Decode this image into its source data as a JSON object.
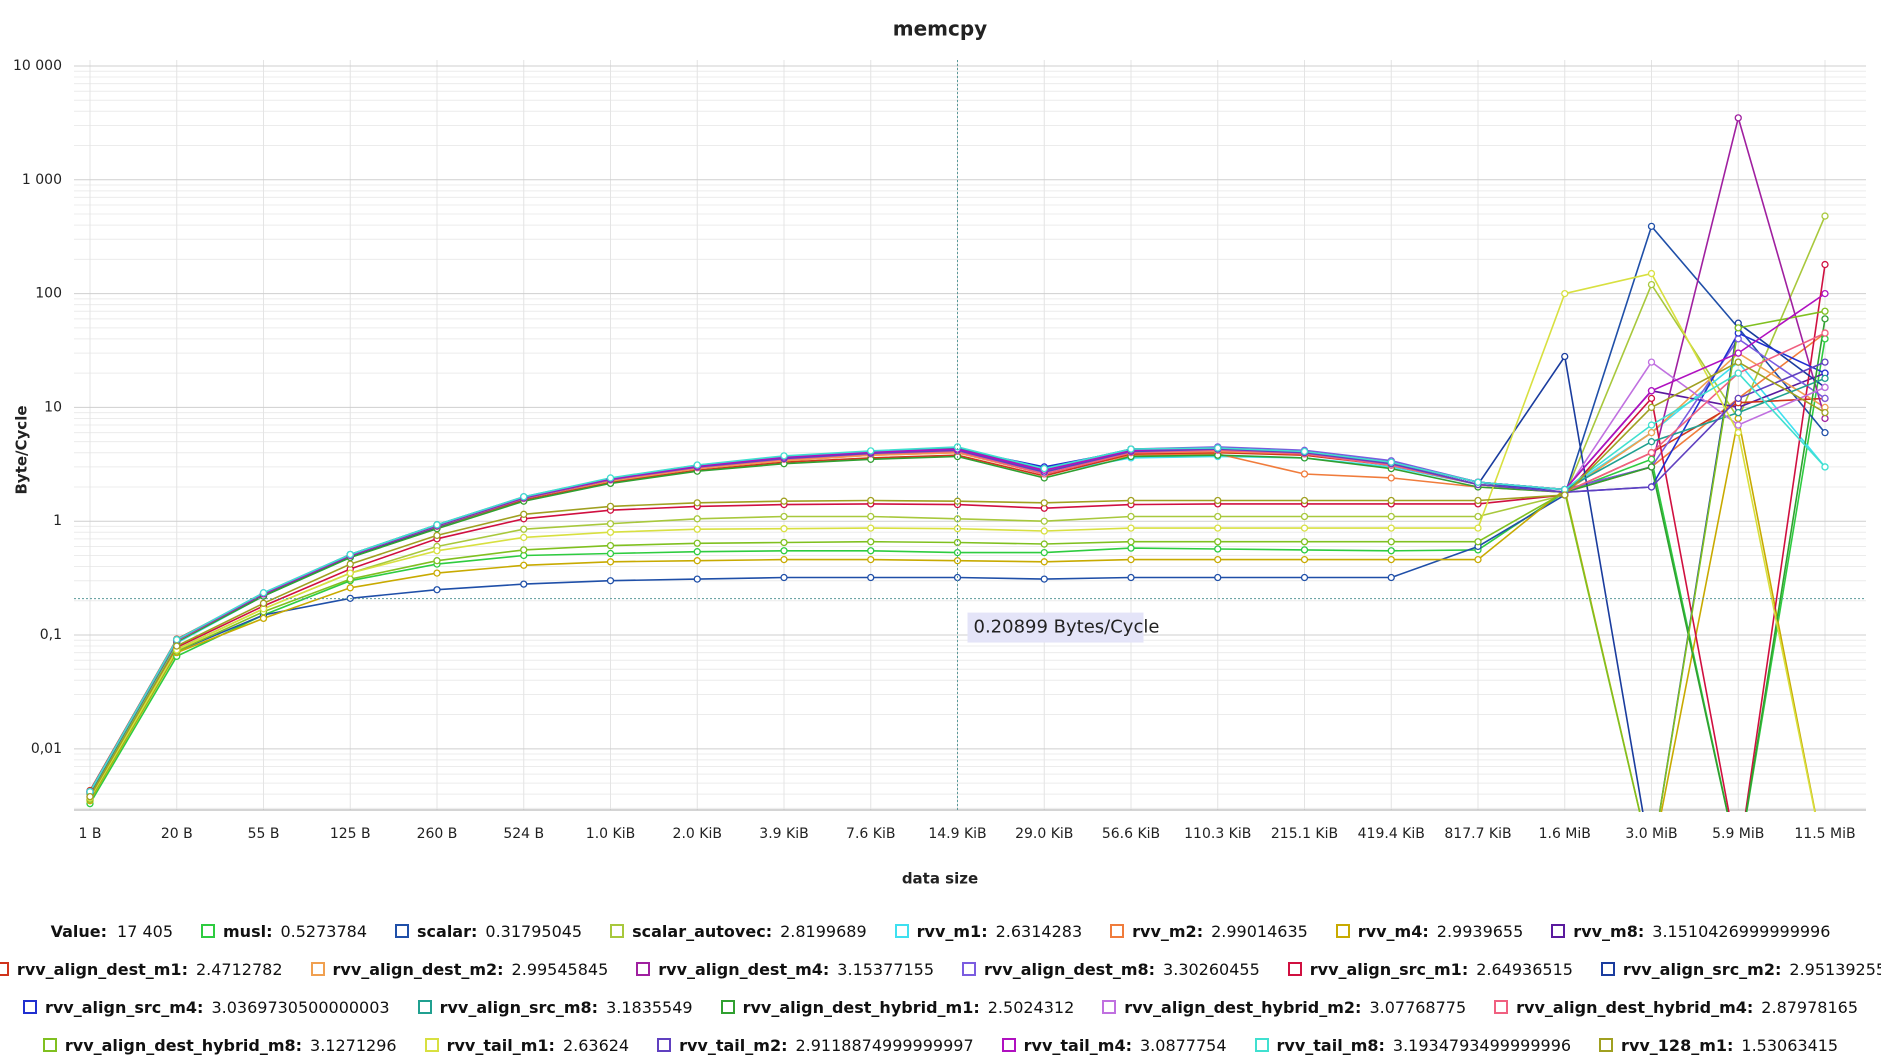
{
  "chart_data": {
    "type": "line",
    "title": "memcpy",
    "x_label": "data size",
    "y_label": "Byte/Cycle",
    "log_y": true,
    "grid": true,
    "categories": [
      "1 B",
      "20 B",
      "55 B",
      "125 B",
      "260 B",
      "524 B",
      "1.0 KiB",
      "2.0 KiB",
      "3.9 KiB",
      "7.6 KiB",
      "14.9 KiB",
      "29.0 KiB",
      "56.6 KiB",
      "110.3 KiB",
      "215.1 KiB",
      "419.4 KiB",
      "817.7 KiB",
      "1.6 MiB",
      "3.0 MiB",
      "5.9 MiB",
      "11.5 MiB"
    ],
    "ylim": [
      0.0029,
      10000
    ],
    "yticks": [
      {
        "value": 0.01,
        "label": "0,01"
      },
      {
        "value": 0.1,
        "label": "0,1"
      },
      1,
      10,
      100,
      {
        "value": 1000,
        "label": "1 000"
      },
      {
        "value": 10000,
        "label": "10 000"
      }
    ],
    "cursor": {
      "value": 0.20899,
      "label": "0.20899 Bytes/Cycle"
    },
    "hover": {
      "label": "Value:",
      "x_value": "17 405"
    },
    "series": [
      {
        "name": "musl",
        "color": "#2ecc40",
        "hover_value": 0.5273784,
        "values": [
          0.0033,
          0.065,
          0.15,
          0.3,
          0.42,
          0.5,
          0.52,
          0.54,
          0.55,
          0.55,
          0.53,
          0.53,
          0.58,
          0.57,
          0.56,
          0.55,
          0.56,
          1.8,
          3.5,
          0.001,
          40
        ]
      },
      {
        "name": "scalar",
        "color": "#1f4fa8",
        "hover_value": 0.31795045,
        "values": [
          0.0036,
          0.072,
          0.15,
          0.21,
          0.25,
          0.28,
          0.3,
          0.31,
          0.32,
          0.32,
          0.32,
          0.31,
          0.32,
          0.32,
          0.32,
          0.32,
          0.6,
          1.7,
          390,
          50,
          6
        ]
      },
      {
        "name": "scalar_autovec",
        "color": "#a8c83c",
        "hover_value": 2.8199689,
        "values": [
          0.0037,
          0.075,
          0.17,
          0.35,
          0.6,
          0.85,
          0.95,
          1.05,
          1.1,
          1.1,
          1.05,
          1.0,
          1.1,
          1.1,
          1.1,
          1.1,
          1.1,
          1.7,
          120,
          8,
          480
        ]
      },
      {
        "name": "rvv_m1",
        "color": "#3ee0f0",
        "hover_value": 2.6314283,
        "values": [
          0.004,
          0.085,
          0.22,
          0.48,
          0.88,
          1.55,
          2.3,
          3.1,
          3.7,
          4.1,
          4.3,
          2.6,
          3.6,
          3.7,
          3.6,
          3.0,
          2.1,
          1.9,
          6,
          25,
          3
        ]
      },
      {
        "name": "rvv_m2",
        "color": "#f07c3c",
        "hover_value": 2.99014635,
        "values": [
          0.0041,
          0.088,
          0.22,
          0.49,
          0.88,
          1.55,
          2.25,
          2.9,
          3.4,
          3.8,
          4.0,
          2.6,
          3.8,
          3.9,
          2.6,
          2.4,
          2.0,
          1.8,
          3,
          12,
          45
        ]
      },
      {
        "name": "rvv_m4",
        "color": "#c8aa00",
        "hover_value": 2.9939655,
        "values": [
          0.0035,
          0.07,
          0.14,
          0.26,
          0.35,
          0.41,
          0.44,
          0.45,
          0.46,
          0.46,
          0.45,
          0.44,
          0.46,
          0.46,
          0.46,
          0.46,
          0.46,
          1.9,
          0.001,
          8,
          0.001
        ]
      },
      {
        "name": "rvv_m8",
        "color": "#5a1a9e",
        "hover_value": 3.1510426999999996,
        "values": [
          0.0042,
          0.09,
          0.23,
          0.5,
          0.92,
          1.62,
          2.35,
          3.05,
          3.6,
          4.0,
          4.3,
          2.8,
          4.3,
          4.4,
          4.1,
          3.3,
          2.2,
          1.9,
          14,
          10,
          20
        ]
      },
      {
        "name": "rvv_align_dest_m1",
        "color": "#d0341c",
        "hover_value": 2.4712782,
        "values": [
          0.0043,
          0.092,
          0.23,
          0.5,
          0.9,
          1.55,
          2.2,
          2.8,
          3.3,
          3.6,
          3.8,
          2.5,
          3.9,
          4.0,
          3.8,
          3.1,
          2.1,
          1.8,
          4,
          11,
          12
        ]
      },
      {
        "name": "rvv_align_dest_m2",
        "color": "#f0a050",
        "hover_value": 2.99545845,
        "values": [
          0.0042,
          0.09,
          0.23,
          0.5,
          0.9,
          1.58,
          2.25,
          2.9,
          3.4,
          3.8,
          4.0,
          2.6,
          4.0,
          4.1,
          3.9,
          3.1,
          2.1,
          1.8,
          6,
          30,
          10
        ]
      },
      {
        "name": "rvv_align_dest_m4",
        "color": "#a020a0",
        "hover_value": 3.15377155,
        "values": [
          0.0042,
          0.09,
          0.23,
          0.51,
          0.92,
          1.62,
          2.35,
          3.05,
          3.65,
          4.05,
          4.3,
          2.7,
          4.2,
          4.4,
          4.1,
          3.3,
          2.2,
          1.9,
          3,
          3500,
          8
        ]
      },
      {
        "name": "rvv_align_dest_m8",
        "color": "#7b5ce0",
        "hover_value": 3.30260455,
        "values": [
          0.0042,
          0.091,
          0.235,
          0.51,
          0.93,
          1.64,
          2.38,
          3.1,
          3.7,
          4.1,
          4.4,
          2.9,
          4.3,
          4.5,
          4.2,
          3.4,
          2.2,
          1.9,
          3,
          40,
          12
        ]
      },
      {
        "name": "rvv_align_src_m1",
        "color": "#d01040",
        "hover_value": 2.64936515,
        "values": [
          0.0038,
          0.078,
          0.18,
          0.38,
          0.7,
          1.05,
          1.25,
          1.35,
          1.4,
          1.42,
          1.4,
          1.3,
          1.4,
          1.42,
          1.42,
          1.42,
          1.42,
          1.7,
          12,
          0.001,
          180
        ]
      },
      {
        "name": "rvv_align_src_m2",
        "color": "#1a3c9e",
        "hover_value": 2.95139255,
        "values": [
          0.0041,
          0.088,
          0.22,
          0.49,
          0.89,
          1.58,
          2.3,
          3.0,
          3.6,
          4.0,
          4.2,
          2.7,
          4.1,
          4.3,
          4.0,
          3.2,
          2.1,
          28,
          0.001,
          55,
          15
        ]
      },
      {
        "name": "rvv_align_src_m4",
        "color": "#2030d0",
        "hover_value": 3.0369730500000003,
        "values": [
          0.0042,
          0.09,
          0.23,
          0.5,
          0.92,
          1.6,
          2.35,
          3.05,
          3.6,
          4.0,
          4.3,
          3.0,
          4.2,
          4.4,
          4.1,
          3.3,
          2.2,
          1.8,
          2,
          45,
          20
        ]
      },
      {
        "name": "rvv_align_src_m8",
        "color": "#20a090",
        "hover_value": 3.1835549,
        "values": [
          0.0042,
          0.091,
          0.23,
          0.51,
          0.93,
          1.63,
          2.38,
          3.1,
          3.7,
          4.1,
          4.4,
          2.9,
          4.3,
          4.4,
          4.1,
          3.3,
          2.2,
          1.9,
          5,
          9,
          18
        ]
      },
      {
        "name": "rvv_align_dest_hybrid_m1",
        "color": "#30a030",
        "hover_value": 2.5024312,
        "values": [
          0.0041,
          0.087,
          0.22,
          0.48,
          0.86,
          1.5,
          2.15,
          2.75,
          3.2,
          3.5,
          3.7,
          2.4,
          3.7,
          3.8,
          3.6,
          2.9,
          2.0,
          1.8,
          3,
          0.001,
          60
        ]
      },
      {
        "name": "rvv_align_dest_hybrid_m2",
        "color": "#c070e0",
        "hover_value": 3.07768775,
        "values": [
          0.0042,
          0.09,
          0.23,
          0.5,
          0.91,
          1.6,
          2.33,
          3.0,
          3.6,
          4.0,
          4.2,
          2.7,
          4.1,
          4.3,
          4.0,
          3.2,
          2.1,
          1.8,
          25,
          7,
          15
        ]
      },
      {
        "name": "rvv_align_dest_hybrid_m4",
        "color": "#f06080",
        "hover_value": 2.87978165,
        "values": [
          0.0042,
          0.089,
          0.23,
          0.5,
          0.9,
          1.58,
          2.3,
          2.95,
          3.5,
          3.9,
          4.1,
          2.6,
          4.0,
          4.2,
          3.9,
          3.1,
          2.1,
          1.8,
          4,
          20,
          45
        ]
      },
      {
        "name": "rvv_align_dest_hybrid_m8",
        "color": "#80c020",
        "hover_value": 3.1271296,
        "values": [
          0.0036,
          0.072,
          0.16,
          0.31,
          0.45,
          0.56,
          0.61,
          0.64,
          0.65,
          0.66,
          0.65,
          0.63,
          0.66,
          0.66,
          0.66,
          0.66,
          0.66,
          1.8,
          0.001,
          50,
          70
        ]
      },
      {
        "name": "rvv_tail_m1",
        "color": "#d8e040",
        "hover_value": 2.63624,
        "values": [
          0.0037,
          0.074,
          0.17,
          0.35,
          0.55,
          0.72,
          0.8,
          0.85,
          0.86,
          0.87,
          0.86,
          0.82,
          0.87,
          0.87,
          0.87,
          0.87,
          0.87,
          100,
          150,
          6,
          0.001
        ]
      },
      {
        "name": "rvv_tail_m2",
        "color": "#6040c0",
        "hover_value": 2.9118874999999997,
        "values": [
          0.0042,
          0.09,
          0.23,
          0.5,
          0.91,
          1.6,
          2.33,
          3.0,
          3.55,
          3.95,
          4.2,
          2.7,
          4.1,
          4.3,
          4.0,
          3.2,
          2.1,
          1.8,
          2,
          12,
          25
        ]
      },
      {
        "name": "rvv_tail_m4",
        "color": "#b010c0",
        "hover_value": 3.0877754,
        "values": [
          0.0042,
          0.09,
          0.23,
          0.5,
          0.92,
          1.62,
          2.36,
          3.05,
          3.65,
          4.05,
          4.3,
          2.8,
          4.2,
          4.4,
          4.1,
          3.3,
          2.2,
          1.9,
          14,
          30,
          100
        ]
      },
      {
        "name": "rvv_tail_m8",
        "color": "#40e0d0",
        "hover_value": 3.1934793499999996,
        "values": [
          0.0042,
          0.091,
          0.235,
          0.51,
          0.93,
          1.64,
          2.4,
          3.12,
          3.75,
          4.15,
          4.5,
          2.9,
          4.3,
          4.4,
          4.1,
          3.3,
          2.2,
          1.9,
          7,
          20,
          3
        ]
      },
      {
        "name": "rvv_128_m1",
        "color": "#a0a020",
        "hover_value": 1.53063415,
        "values": [
          0.0038,
          0.08,
          0.19,
          0.42,
          0.75,
          1.15,
          1.35,
          1.45,
          1.5,
          1.52,
          1.5,
          1.45,
          1.52,
          1.52,
          1.52,
          1.52,
          1.52,
          1.7,
          10,
          25,
          9
        ]
      }
    ]
  }
}
